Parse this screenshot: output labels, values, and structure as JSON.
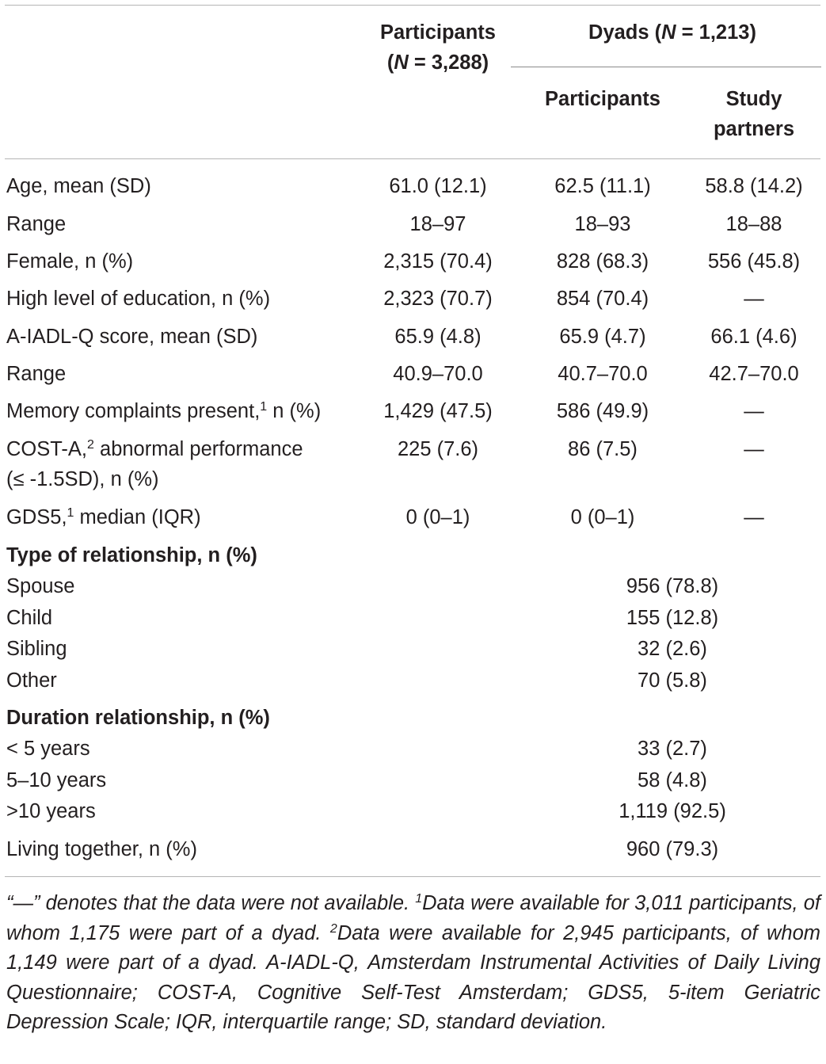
{
  "header": {
    "participants_line1": "Participants",
    "participants_line2": "(N = 3,288)",
    "dyads": "Dyads (N = 1,213)",
    "dyads_participants": "Participants",
    "study_partners_line1": "Study",
    "study_partners_line2": "partners"
  },
  "rows": [
    {
      "label": "Age, mean (SD)",
      "participants": "61.0 (12.1)",
      "dyad_participants": "62.5 (11.1)",
      "study_partners": "58.8 (14.2)"
    },
    {
      "label": "Range",
      "participants": "18–97",
      "dyad_participants": "18–93",
      "study_partners": "18–88"
    },
    {
      "label": "Female, n (%)",
      "participants": "2,315 (70.4)",
      "dyad_participants": "828 (68.3)",
      "study_partners": "556 (45.8)"
    },
    {
      "label": "High level of education, n (%)",
      "participants": "2,323 (70.7)",
      "dyad_participants": "854 (70.4)",
      "study_partners": "—"
    },
    {
      "label": "A-IADL-Q score, mean (SD)",
      "participants": "65.9 (4.8)",
      "dyad_participants": "65.9 (4.7)",
      "study_partners": "66.1 (4.6)"
    },
    {
      "label": "Range",
      "participants": "40.9–70.0",
      "dyad_participants": "40.7–70.0",
      "study_partners": "42.7–70.0"
    },
    {
      "label_pre": "Memory complaints present,",
      "label_sup": "1",
      "label_post": " n (%)",
      "participants": "1,429 (47.5)",
      "dyad_participants": "586 (49.9)",
      "study_partners": "—"
    },
    {
      "label_pre": "COST-A,",
      "label_sup": "2",
      "label_post": " abnormal performance",
      "label_line2": "(≤ -1.5SD), n (%)",
      "participants": "225 (7.6)",
      "dyad_participants": "86 (7.5)",
      "study_partners": "—"
    },
    {
      "label_pre": "GDS5,",
      "label_sup": "1",
      "label_post": " median (IQR)",
      "participants": "0 (0–1)",
      "dyad_participants": "0 (0–1)",
      "study_partners": "—"
    }
  ],
  "relationship_type": {
    "heading": "Type of relationship, n (%)",
    "rows": [
      {
        "label": "Spouse",
        "value": "956 (78.8)"
      },
      {
        "label": "Child",
        "value": "155 (12.8)"
      },
      {
        "label": "Sibling",
        "value": "32 (2.6)"
      },
      {
        "label": "Other",
        "value": "70 (5.8)"
      }
    ]
  },
  "relationship_duration": {
    "heading": "Duration relationship, n (%)",
    "rows": [
      {
        "label": "< 5 years",
        "value": "33 (2.7)"
      },
      {
        "label": "5–10 years",
        "value": "58 (4.8)"
      },
      {
        "label": ">10 years",
        "value": "1,119 (92.5)"
      }
    ]
  },
  "living_together": {
    "label": "Living together, n (%)",
    "value": "960 (79.3)"
  },
  "footnote": {
    "part1": "“—” denotes that the data were not available. ",
    "sup1": "1",
    "part2": "Data were available for 3,011 participants, of whom 1,175 were part of a dyad. ",
    "sup2": "2",
    "part3": "Data were available for 2,945 participants, of whom 1,149 were part of a dyad. A-IADL-Q, Amsterdam Instrumental Activities of Daily Living Questionnaire; COST-A, Cognitive Self-Test Amsterdam; GDS5, 5-item Geriatric Depression Scale; IQR, interquartile range; SD, standard deviation."
  }
}
